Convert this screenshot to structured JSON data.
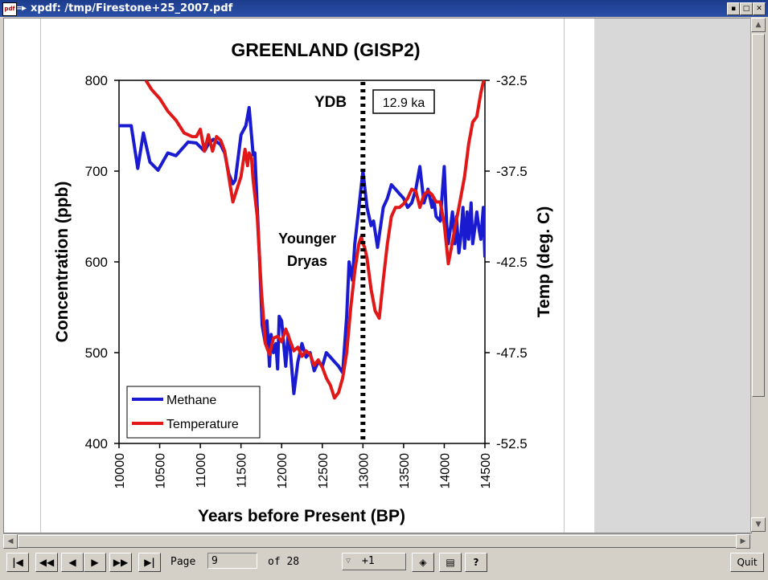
{
  "window": {
    "title": "xpdf: /tmp/Firestone+25_2007.pdf",
    "app_icon_text": "pdf",
    "menu_icon": "menu-icon",
    "buttons": [
      "minimize-icon",
      "maximize-icon",
      "close-icon"
    ]
  },
  "toolbar": {
    "page_label": "Page",
    "page_value": "9",
    "of_label": "of 28",
    "zoom_value": "+1",
    "quit_label": "Quit",
    "buttons": [
      "first-page-icon",
      "back-5-icon",
      "prev-page-icon",
      "next-page-icon",
      "forward-5-icon",
      "last-page-icon",
      "find-icon",
      "print-icon",
      "about-icon"
    ]
  },
  "chart_data": {
    "type": "line",
    "title": "GREENLAND (GISP2)",
    "xlabel": "Years before Present (BP)",
    "ylabel": "Concentration (ppb)",
    "y2label": "Temp (deg. C)",
    "xlim": [
      10000,
      14500
    ],
    "ylim": [
      400,
      800
    ],
    "y2lim": [
      -52.5,
      -32.5
    ],
    "x_ticks": [
      "10000",
      "10500",
      "11000",
      "11500",
      "12000",
      "12500",
      "13000",
      "13500",
      "14000",
      "14500"
    ],
    "y_ticks": [
      "400",
      "500",
      "600",
      "700",
      "800"
    ],
    "y2_ticks": [
      "-52.5",
      "-47.5",
      "-42.5",
      "-37.5",
      "-32.5"
    ],
    "legend_position": "bottom-left",
    "annotations": [
      "YDB",
      "12.9 ka",
      "Younger",
      "Dryas"
    ],
    "vline_x": 13000,
    "series": [
      {
        "name": "Methane",
        "axis": "left",
        "color": "#1a1ad0",
        "x": [
          10000,
          10150,
          10230,
          10300,
          10380,
          10480,
          10600,
          10700,
          10850,
          10950,
          11050,
          11100,
          11160,
          11250,
          11300,
          11350,
          11400,
          11430,
          11500,
          11560,
          11600,
          11650,
          11670,
          11690,
          11700,
          11730,
          11760,
          11800,
          11820,
          11850,
          11870,
          11900,
          11930,
          11950,
          11970,
          12000,
          12050,
          12080,
          12100,
          12150,
          12200,
          12250,
          12300,
          12350,
          12400,
          12450,
          12500,
          12550,
          12600,
          12650,
          12700,
          12750,
          12800,
          12830,
          12870,
          12900,
          12950,
          13000,
          13050,
          13100,
          13130,
          13180,
          13250,
          13300,
          13350,
          13400,
          13450,
          13500,
          13550,
          13600,
          13650,
          13700,
          13750,
          13800,
          13850,
          13870,
          13900,
          13950,
          14000,
          14030,
          14050,
          14080,
          14100,
          14130,
          14150,
          14180,
          14200,
          14230,
          14250,
          14280,
          14300,
          14330,
          14350,
          14380,
          14400,
          14430,
          14450,
          14480,
          14500
        ],
        "y": [
          750,
          750,
          703,
          742,
          710,
          701,
          720,
          717,
          732,
          731,
          722,
          730,
          735,
          729,
          720,
          697,
          686,
          690,
          740,
          750,
          770,
          718,
          720,
          680,
          660,
          600,
          530,
          510,
          535,
          485,
          520,
          500,
          510,
          482,
          540,
          535,
          485,
          520,
          510,
          455,
          490,
          510,
          495,
          500,
          480,
          490,
          485,
          500,
          495,
          490,
          485,
          478,
          540,
          600,
          580,
          620,
          660,
          700,
          660,
          640,
          645,
          616,
          660,
          670,
          685,
          680,
          675,
          670,
          660,
          665,
          680,
          705,
          665,
          680,
          660,
          670,
          650,
          645,
          705,
          640,
          620,
          640,
          655,
          620,
          650,
          610,
          625,
          660,
          615,
          655,
          625,
          665,
          620,
          640,
          655,
          635,
          625,
          660,
          605
        ]
      },
      {
        "name": "Temperature",
        "axis": "right",
        "color": "#e01818",
        "x": [
          10330,
          10400,
          10500,
          10600,
          10700,
          10800,
          10900,
          10950,
          11000,
          11050,
          11100,
          11150,
          11200,
          11250,
          11300,
          11350,
          11400,
          11450,
          11500,
          11550,
          11580,
          11600,
          11630,
          11650,
          11700,
          11750,
          11800,
          11850,
          11900,
          11950,
          12000,
          12050,
          12100,
          12150,
          12200,
          12250,
          12300,
          12350,
          12400,
          12450,
          12500,
          12550,
          12600,
          12650,
          12700,
          12750,
          12800,
          12850,
          12900,
          12950,
          12980,
          13000,
          13020,
          13050,
          13100,
          13150,
          13200,
          13250,
          13300,
          13350,
          13400,
          13450,
          13500,
          13550,
          13600,
          13650,
          13700,
          13750,
          13800,
          13850,
          13900,
          13950,
          14000,
          14050,
          14100,
          14150,
          14200,
          14250,
          14300,
          14350,
          14400,
          14450,
          14500
        ],
        "y": [
          -32.5,
          -33,
          -33.5,
          -34.2,
          -34.7,
          -35.4,
          -35.6,
          -35.6,
          -35.2,
          -36.4,
          -35.5,
          -36.4,
          -35.6,
          -35.8,
          -36.4,
          -37.8,
          -39.2,
          -38.5,
          -37.8,
          -36.3,
          -37.2,
          -36.5,
          -36.8,
          -38,
          -40,
          -44,
          -47,
          -47.6,
          -46.7,
          -46.6,
          -46.9,
          -46.2,
          -46.8,
          -47.4,
          -47.2,
          -47.7,
          -47.4,
          -47.6,
          -48.2,
          -47.9,
          -48.3,
          -48.9,
          -49.3,
          -50,
          -49.7,
          -48.9,
          -47.5,
          -45,
          -43,
          -41.5,
          -41.1,
          -41.5,
          -41.7,
          -42.3,
          -44,
          -45.2,
          -45.6,
          -43.5,
          -41.5,
          -40,
          -39.5,
          -39.5,
          -39.3,
          -39,
          -38.5,
          -38.6,
          -39.5,
          -38.8,
          -38.6,
          -38.8,
          -39.2,
          -39.2,
          -40.4,
          -42.6,
          -41.4,
          -40.2,
          -39,
          -37.8,
          -36,
          -34.8,
          -34.5,
          -33.2,
          -32.2
        ]
      }
    ]
  }
}
